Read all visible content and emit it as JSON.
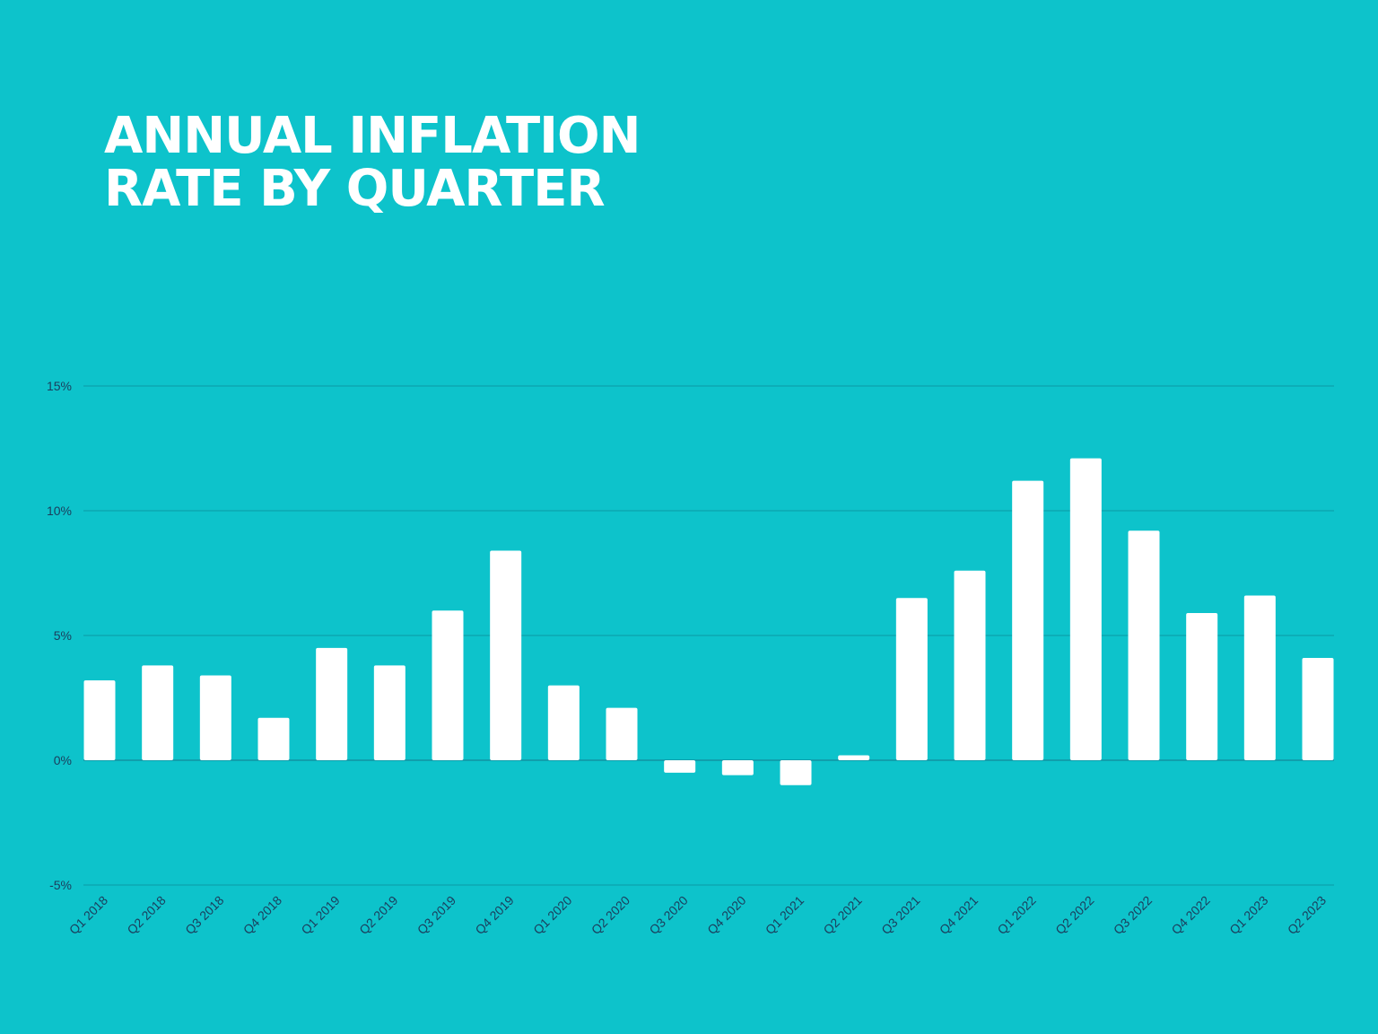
{
  "chart_data": {
    "type": "bar",
    "title_lines": [
      "ANNUAL INFLATION",
      "RATE BY QUARTER"
    ],
    "xlabel": "",
    "ylabel": "",
    "categories": [
      "Q1 2018",
      "Q2 2018",
      "Q3 2018",
      "Q4 2018",
      "Q1 2019",
      "Q2 2019",
      "Q3 2019",
      "Q4 2019",
      "Q1 2020",
      "Q2 2020",
      "Q3 2020",
      "Q4 2020",
      "Q1 2021",
      "Q2 2021",
      "Q3 2021",
      "Q4 2021",
      "Q1 2022",
      "Q2 2022",
      "Q3 2022",
      "Q4 2022",
      "Q1 2023",
      "Q2 2023"
    ],
    "values": [
      3.2,
      3.8,
      3.4,
      1.7,
      4.5,
      3.8,
      6.0,
      8.4,
      3.0,
      2.1,
      -0.5,
      -0.6,
      -1.0,
      0.2,
      6.5,
      7.6,
      11.2,
      12.1,
      9.2,
      5.9,
      6.6,
      4.1
    ],
    "ylim": [
      -5,
      15
    ],
    "yticks": [
      15,
      10,
      5,
      0,
      -5
    ],
    "ytick_labels": [
      "15%",
      "10%",
      "5%",
      "0%",
      "-5%"
    ],
    "grid": true,
    "legend": "none",
    "colors": {
      "background": "#0dc3cb",
      "bar": "#ffffff",
      "grid": "#0a9aa6",
      "text": "#1b3d5c",
      "title": "#ffffff"
    }
  }
}
